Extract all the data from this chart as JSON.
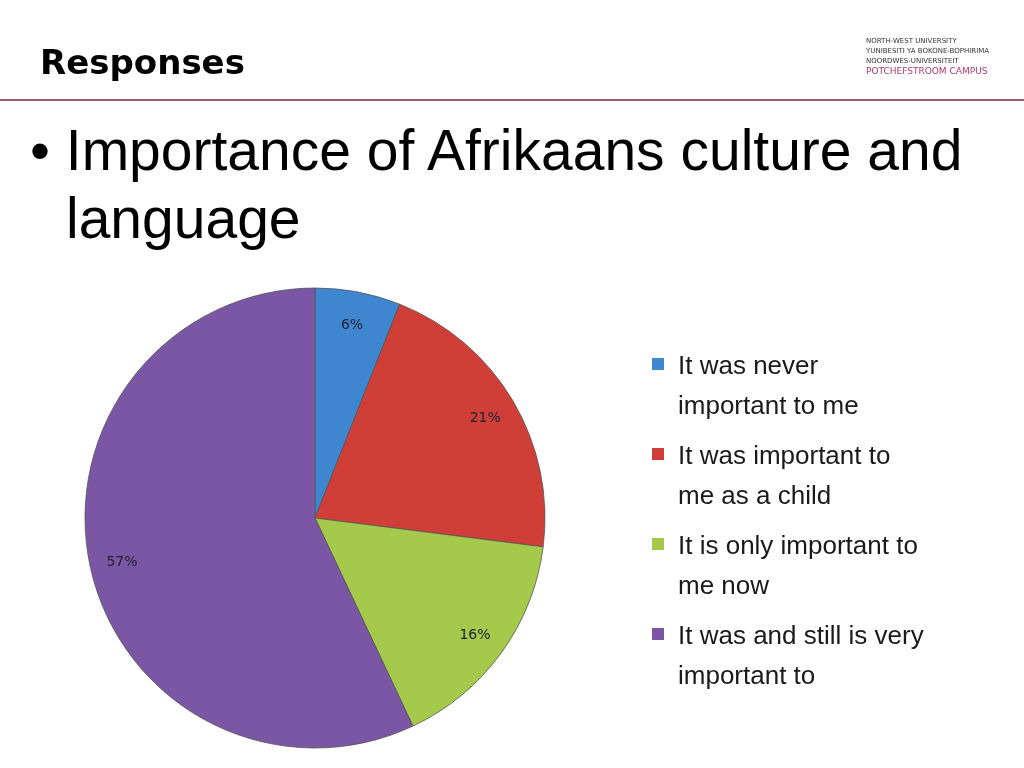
{
  "chart_data": {
    "type": "pie",
    "title": "Responses",
    "subtitle": "• Importance of Afrikaans culture and language",
    "annotations": [
      "NORTH-WEST UNIVERSITY",
      "YUNIBESITI YA BOKONE-BOPHIRIMA",
      "NOORDWES-UNIVERSITEIT",
      "POTCHEFSTROOM CAMPUS"
    ],
    "categories": [
      "It was never important to me",
      "It was important to me as a child",
      "It is only important to me now",
      "It was and still is very important to"
    ],
    "values": [
      6,
      21,
      16,
      57
    ],
    "value_labels": [
      "6%",
      "21%",
      "16%",
      "57%"
    ],
    "colors": [
      "#3f86d1",
      "#cf3f38",
      "#a5c94b",
      "#7a56a4"
    ],
    "legend": "right"
  }
}
